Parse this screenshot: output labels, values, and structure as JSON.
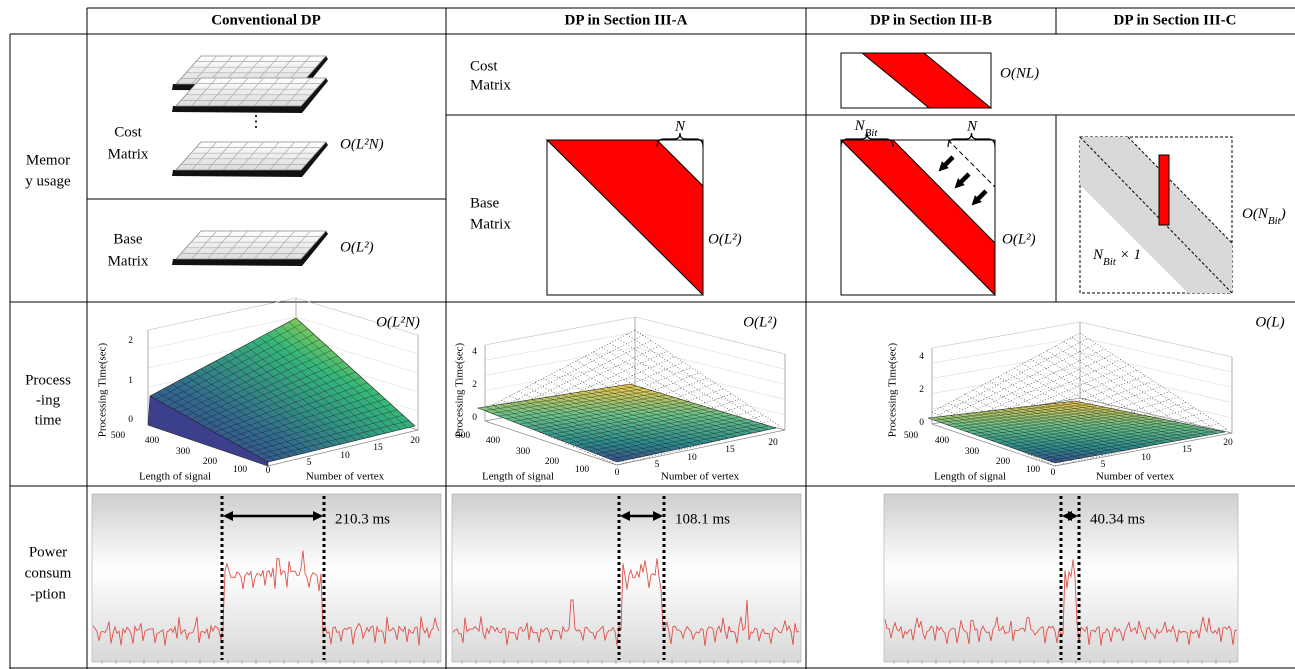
{
  "header": {
    "columns": [
      "Conventional DP",
      "DP in Section III-A",
      "DP in Section III-B",
      "DP in Section III-C"
    ]
  },
  "memory_usage": {
    "label": [
      "Memor",
      "y usage"
    ],
    "conventional": {
      "cost": {
        "label": [
          "Cost",
          "Matrix"
        ],
        "complexity": "O(L²N)"
      },
      "base": {
        "label": [
          "Base",
          "Matrix"
        ],
        "complexity": "O(L²)"
      }
    },
    "shared_cost": {
      "label": [
        "Cost",
        "Matrix"
      ],
      "complexity": "O(NL)"
    },
    "shared_base_label": [
      "Base",
      "Matrix"
    ],
    "section_a": {
      "brace": "N",
      "complexity": "O(L²)"
    },
    "section_b": {
      "brace_left": {
        "main": "N",
        "sub": "Bit"
      },
      "brace_right": "N",
      "complexity": "O(L²)"
    },
    "section_c": {
      "vector": {
        "main": "N",
        "sub": "Bit",
        "tail": " × 1"
      },
      "complexity": {
        "main": "O(N",
        "sub": "Bit",
        "tail": ")"
      }
    }
  },
  "processing_time": {
    "label": [
      "Process",
      "-ing",
      "time"
    ],
    "plots": [
      {
        "complexity": "O(L²N)",
        "z_label": "Processing Time(sec)",
        "z_ticks": [
          0,
          1,
          2
        ],
        "length_label": "Length of signal",
        "length_ticks": [
          500,
          400,
          300,
          200,
          100
        ],
        "vertex_label": "Number of vertex",
        "vertex_ticks": [
          0,
          5,
          10,
          15,
          20
        ]
      },
      {
        "complexity": "O(L²)",
        "z_label": "Processing Time(sec)",
        "z_ticks": [
          0,
          2,
          4
        ],
        "length_label": "Length of signal",
        "length_ticks": [
          500,
          400,
          300,
          200,
          100
        ],
        "vertex_label": "Number of vertex",
        "vertex_ticks": [
          0,
          5,
          10,
          15,
          20
        ]
      },
      {
        "complexity": "O(L)",
        "z_label": "Processing Time(sec)",
        "z_ticks": [
          0,
          2,
          4
        ],
        "length_label": "Length of signal",
        "length_ticks": [
          500,
          400,
          300,
          200,
          100
        ],
        "vertex_label": "Number of vertex",
        "vertex_ticks": [
          0,
          5,
          10,
          15,
          20
        ]
      }
    ]
  },
  "power_consumption": {
    "label": [
      "Power",
      "consum",
      "-ption"
    ],
    "durations": [
      "210.3 ms",
      "108.1 ms",
      "40.34 ms"
    ]
  }
}
